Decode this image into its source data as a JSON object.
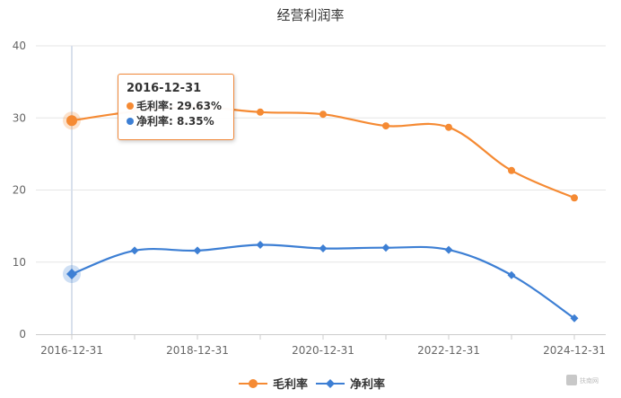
{
  "chart_data": {
    "type": "line",
    "title": "经营利润率",
    "x": [
      "2016-12-31",
      "2017-12-31",
      "2018-12-31",
      "2019-12-31",
      "2020-12-31",
      "2021-12-31",
      "2022-12-31",
      "2023-12-31",
      "2024-12-31"
    ],
    "x_tick_labels": [
      "2016-12-31",
      "2018-12-31",
      "2020-12-31",
      "2022-12-31",
      "2024-12-31"
    ],
    "ylim": [
      0,
      40
    ],
    "y_ticks": [
      0,
      10,
      20,
      30,
      40
    ],
    "grid": true,
    "legend": "bottom",
    "series": [
      {
        "name": "毛利率",
        "color": "#f58a33",
        "marker": "circle",
        "values": [
          29.63,
          30.9,
          31.5,
          30.8,
          30.5,
          28.9,
          28.7,
          22.7,
          18.9
        ]
      },
      {
        "name": "净利率",
        "color": "#3d7fd4",
        "marker": "diamond",
        "values": [
          8.35,
          11.6,
          11.6,
          12.4,
          11.9,
          12.0,
          11.7,
          8.2,
          2.2
        ]
      }
    ]
  },
  "tooltip": {
    "date": "2016-12-31",
    "rows": [
      {
        "label": "毛利率",
        "value": "29.63%",
        "color": "#f58a33"
      },
      {
        "label": "净利率",
        "value": "8.35%",
        "color": "#3d7fd4"
      }
    ]
  },
  "watermark": {
    "text": "扶南网"
  }
}
